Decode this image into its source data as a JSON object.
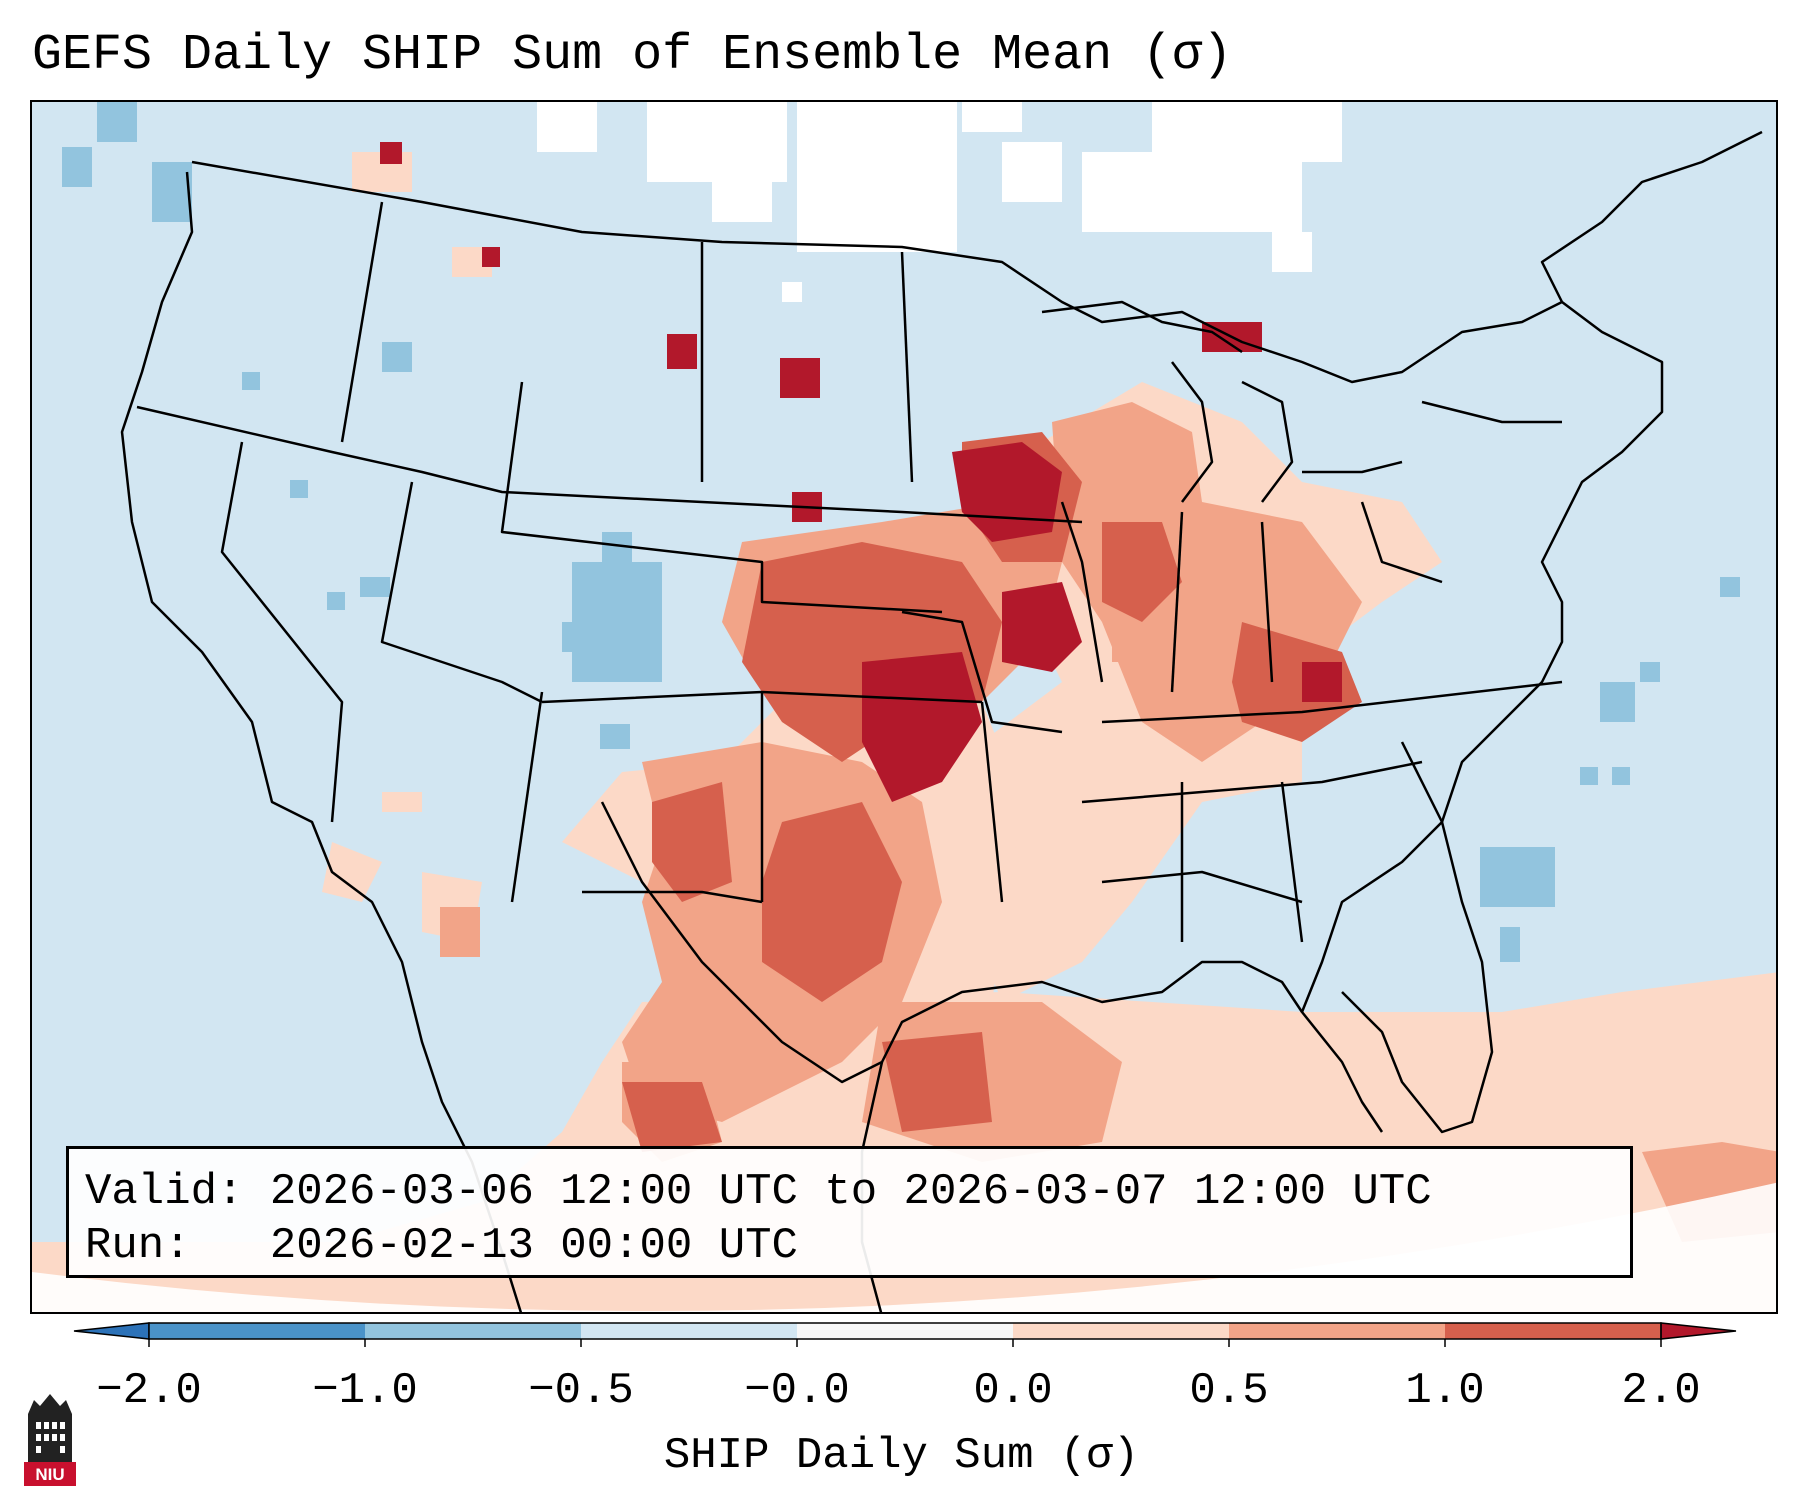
{
  "title": "GEFS Daily SHIP Sum of Ensemble Mean (σ)",
  "info": {
    "valid_line": "Valid: 2026-03-06 12:00 UTC to 2026-03-07 12:00 UTC",
    "run_line": "Run:   2026-02-13 00:00 UTC"
  },
  "colorbar": {
    "label": "SHIP Daily Sum (σ)",
    "ticks": [
      "−2.0",
      "−1.0",
      "−0.5",
      "−0.0",
      "0.0",
      "0.5",
      "1.0",
      "2.0"
    ],
    "bins": [
      {
        "range": "< -2.0",
        "color": "#2c72b8"
      },
      {
        "range": "-2.0 to -1.0",
        "color": "#4a93c9"
      },
      {
        "range": "-1.0 to -0.5",
        "color": "#92c4de"
      },
      {
        "range": "-0.5 to 0.0",
        "color": "#d2e6f2"
      },
      {
        "range": "0.0",
        "color": "#f7f7f7"
      },
      {
        "range": "0.0 to 0.5",
        "color": "#fcd9c7"
      },
      {
        "range": "0.5 to 1.0",
        "color": "#f2a488"
      },
      {
        "range": "1.0 to 2.0",
        "color": "#d6604d"
      },
      {
        "range": "> 2.0",
        "color": "#b2182b"
      }
    ]
  },
  "logo": {
    "text": "NIU",
    "icon": "niu-tower-icon"
  }
}
